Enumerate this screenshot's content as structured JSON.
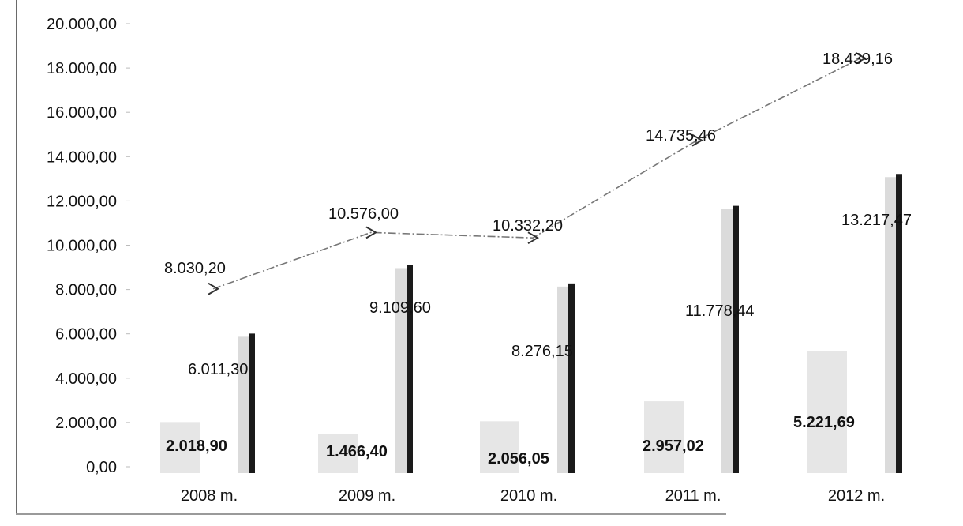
{
  "chart_data": {
    "type": "bar",
    "categories": [
      "2008 m.",
      "2009 m.",
      "2010 m.",
      "2011 m.",
      "2012 m."
    ],
    "ylim": [
      0,
      20000
    ],
    "yticks": [
      "0,00",
      "2.000,00",
      "4.000,00",
      "6.000,00",
      "8.000,00",
      "10.000,00",
      "12.000,00",
      "14.000,00",
      "16.000,00",
      "18.000,00",
      "20.000,00"
    ],
    "series": [
      {
        "kind": "bar",
        "values": [
          2018.9,
          1466.4,
          2056.05,
          2957.02,
          5221.69
        ],
        "labels": [
          "2.018,90",
          "1.466,40",
          "2.056,05",
          "2.957,02",
          "5.221,69"
        ],
        "color": "#c8c8c8"
      },
      {
        "kind": "bar",
        "values": [
          6011.3,
          9109.6,
          8276.15,
          11778.44,
          13217.47
        ],
        "labels": [
          "6.011,30",
          "9.109,60",
          "8.276,15",
          "11.778,44",
          "13.217,47"
        ],
        "color": "#1a1a1a"
      },
      {
        "kind": "line",
        "values": [
          8030.2,
          10576.0,
          10332.2,
          14735.46,
          18439.16
        ],
        "labels": [
          "8.030,20",
          "10.576,00",
          "10.332,20",
          "14.735,46",
          "18.439,16"
        ],
        "color": "#777777"
      }
    ],
    "title": "",
    "xlabel": "",
    "ylabel": "",
    "grid": false,
    "legend": "none"
  }
}
